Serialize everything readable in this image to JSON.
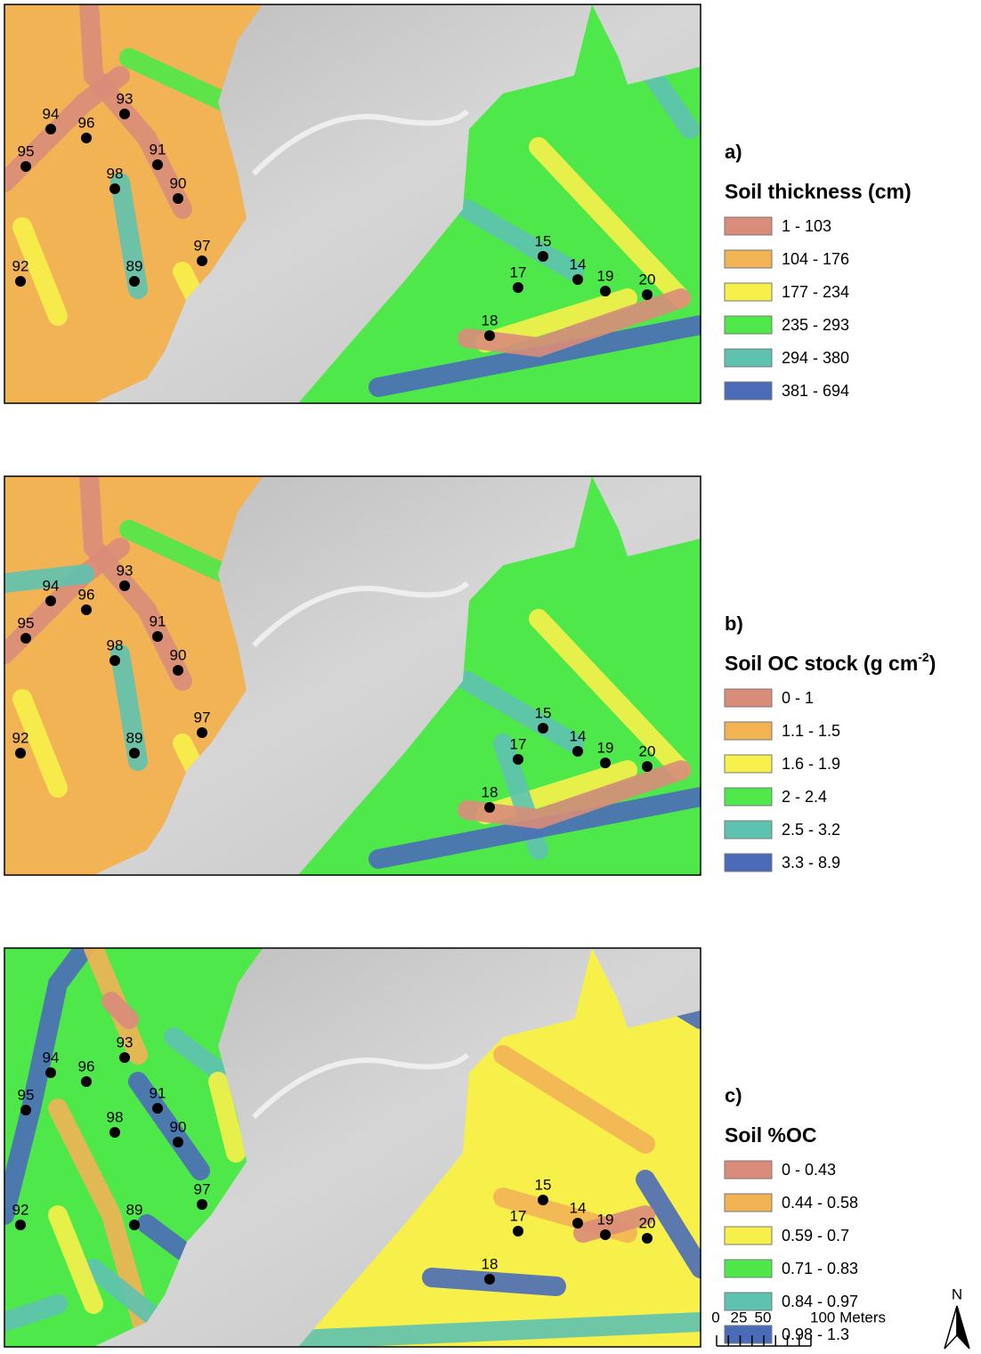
{
  "panels": [
    {
      "label": "a)",
      "title": {
        "text": "Soil thickness (cm)",
        "superscript": null,
        "suffix": null
      },
      "legend": [
        {
          "label": "1 - 103",
          "color": "#d98c7a"
        },
        {
          "label": "104 - 176",
          "color": "#f2b355"
        },
        {
          "label": "177 - 234",
          "color": "#f7f04a"
        },
        {
          "label": "235 - 293",
          "color": "#4fe84a"
        },
        {
          "label": "294 - 380",
          "color": "#5dc2b0"
        },
        {
          "label": "381 - 694",
          "color": "#4a6bb8"
        }
      ]
    },
    {
      "label": "b)",
      "title": {
        "text": "Soil OC stock (g cm",
        "superscript": "-2",
        "suffix": ")"
      },
      "legend": [
        {
          "label": "0 - 1",
          "color": "#d98c7a"
        },
        {
          "label": "1.1 - 1.5",
          "color": "#f2b355"
        },
        {
          "label": "1.6 - 1.9",
          "color": "#f7f04a"
        },
        {
          "label": "2 - 2.4",
          "color": "#4fe84a"
        },
        {
          "label": "2.5 - 3.2",
          "color": "#5dc2b0"
        },
        {
          "label": "3.3 - 8.9",
          "color": "#4a6bb8"
        }
      ]
    },
    {
      "label": "c)",
      "title": {
        "text": "Soil %OC",
        "superscript": null,
        "suffix": null
      },
      "legend": [
        {
          "label": "0 - 0.43",
          "color": "#d98c7a"
        },
        {
          "label": "0.44 - 0.58",
          "color": "#f2b355"
        },
        {
          "label": "0.59 - 0.7",
          "color": "#f7f04a"
        },
        {
          "label": "0.71 - 0.83",
          "color": "#4fe84a"
        },
        {
          "label": "0.84 - 0.97",
          "color": "#5dc2b0"
        },
        {
          "label": "0.98 - 1.3",
          "color": "#4a6bb8"
        }
      ]
    }
  ],
  "sites": [
    "94",
    "93",
    "96",
    "95",
    "91",
    "98",
    "90",
    "97",
    "92",
    "89",
    "15",
    "17",
    "14",
    "19",
    "20",
    "18"
  ],
  "scale_bar": {
    "ticks": [
      "0",
      "25",
      "50"
    ],
    "end": "100 Meters"
  },
  "north": "N"
}
